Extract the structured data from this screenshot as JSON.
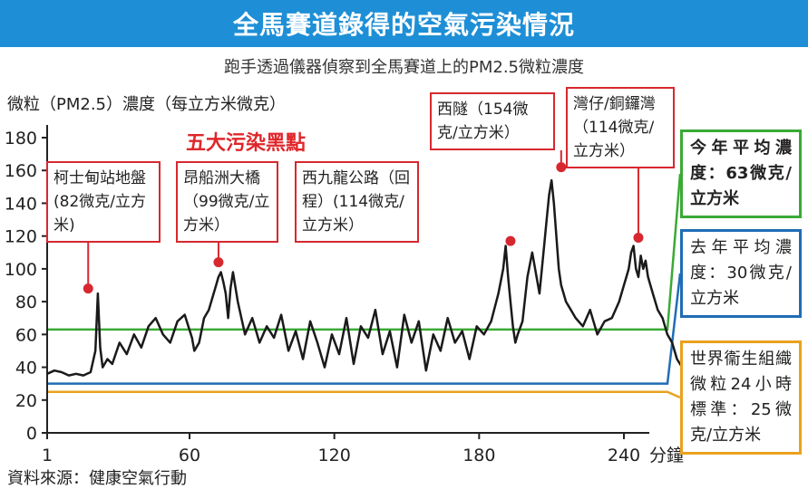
{
  "chart_data": {
    "type": "line",
    "title": "全馬賽道錄得的空氣污染情況",
    "subtitle": "跑手透過儀器偵察到全馬賽道上的PM2.5微粒濃度",
    "ylabel": "微粒（PM2.5）濃度（每立方米微克）",
    "xlabel": "分鐘",
    "ylim": [
      0,
      180
    ],
    "xlim": [
      1,
      265
    ],
    "yticks": [
      0,
      20,
      40,
      60,
      80,
      100,
      120,
      140,
      160,
      180
    ],
    "xticks": [
      1,
      60,
      120,
      180,
      240
    ],
    "series": [
      {
        "color": "#1a1a1a",
        "x": [
          1,
          4,
          7,
          10,
          13,
          16,
          19,
          21,
          22,
          23,
          24,
          26,
          28,
          31,
          34,
          37,
          40,
          43,
          46,
          49,
          52,
          55,
          58,
          61,
          62,
          64,
          66,
          68,
          70,
          71,
          72,
          73,
          74,
          75,
          76,
          77,
          78,
          80,
          83,
          86,
          89,
          92,
          95,
          98,
          101,
          104,
          107,
          110,
          113,
          116,
          119,
          122,
          125,
          128,
          131,
          134,
          137,
          140,
          143,
          146,
          149,
          152,
          155,
          158,
          161,
          164,
          167,
          170,
          173,
          176,
          179,
          182,
          185,
          188,
          190,
          191,
          192,
          193,
          194,
          195,
          196,
          198,
          200,
          202,
          205,
          207,
          208,
          209,
          210,
          211,
          212,
          213,
          214,
          215,
          216,
          218,
          220,
          223,
          226,
          229,
          232,
          235,
          238,
          240,
          241,
          242,
          243,
          244,
          245,
          246,
          247,
          248,
          249,
          250,
          252,
          254,
          256,
          258,
          260,
          262,
          265
        ],
        "y": [
          36,
          38,
          37,
          35,
          36,
          35,
          37,
          50,
          85,
          52,
          40,
          45,
          42,
          55,
          48,
          60,
          52,
          65,
          70,
          60,
          55,
          68,
          72,
          58,
          50,
          55,
          70,
          75,
          85,
          90,
          95,
          98,
          92,
          85,
          70,
          88,
          98,
          80,
          60,
          70,
          55,
          65,
          58,
          72,
          50,
          62,
          45,
          68,
          55,
          40,
          60,
          48,
          70,
          42,
          65,
          58,
          75,
          48,
          62,
          40,
          72,
          55,
          68,
          38,
          60,
          50,
          70,
          55,
          62,
          45,
          65,
          60,
          68,
          85,
          100,
          114,
          95,
          80,
          65,
          55,
          60,
          68,
          95,
          110,
          85,
          115,
          130,
          145,
          154,
          140,
          120,
          100,
          90,
          85,
          80,
          75,
          70,
          65,
          75,
          60,
          68,
          70,
          80,
          90,
          95,
          100,
          110,
          114,
          100,
          95,
          108,
          100,
          105,
          95,
          85,
          75,
          70,
          60,
          55,
          45,
          38
        ]
      }
    ],
    "reference_lines": [
      {
        "value": 63,
        "color": "#3aaa35",
        "label": "今年平均濃度：63微克/立方米"
      },
      {
        "value": 30,
        "color": "#1f6db5",
        "label": "去年平均濃度：30微克/立方米"
      },
      {
        "value": 25,
        "color": "#e9a21f",
        "label": "世界衞生組織微粒24小時標準：25微克/立方米"
      }
    ],
    "annotations_title": "五大污染黑點",
    "annotations": [
      {
        "x": 18,
        "y": 88,
        "label": "柯士甸站地盤(82微克/立方米)"
      },
      {
        "x": 72,
        "y": 104,
        "label": "昂船洲大橋（99微克/立方米）"
      },
      {
        "x": 193,
        "y": 117,
        "label": "西九龍公路（回程）(114微克/立方米）"
      },
      {
        "x": 214,
        "y": 162,
        "label": "西隧（154微克/立方米）"
      },
      {
        "x": 246,
        "y": 119,
        "label": "灣仔/銅鑼灣（114微克/立方米）"
      }
    ],
    "source": "資料來源：健康空氣行動",
    "grid": false,
    "legend": "none"
  }
}
